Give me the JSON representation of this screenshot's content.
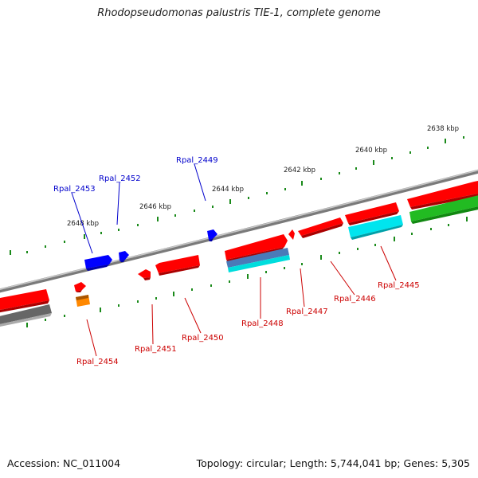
{
  "title": "Rhodopseudomonas palustris TIE-1, complete genome",
  "footer": {
    "accession": "Accession: NC_011004",
    "topology": "Topology: circular; Length: 5,744,041 bp; Genes: 5,305"
  },
  "colors": {
    "backbone": "#8a8a8a",
    "forward_gene": "#ff0000",
    "reverse_gene": "#0000ff",
    "cyan_feature": "#00e5ee",
    "green_feature": "#22bb22",
    "gray_feature": "#666666",
    "steelblue_feature": "#4a7ab8",
    "orange_feature": "#ff8800",
    "blue_label": "#0000cc",
    "red_label": "#cc0000"
  },
  "ruler_labels": [
    "2638 kbp",
    "2640 kbp",
    "2642 kbp",
    "2644 kbp",
    "2646 kbp",
    "2648 kbp"
  ],
  "genes_top": [
    {
      "name": "Rpal_2453",
      "color": "blue"
    },
    {
      "name": "Rpal_2452",
      "color": "blue"
    },
    {
      "name": "Rpal_2449",
      "color": "blue"
    }
  ],
  "genes_bottom": [
    {
      "name": "Rpal_2454",
      "color": "red"
    },
    {
      "name": "Rpal_2451",
      "color": "red"
    },
    {
      "name": "Rpal_2450",
      "color": "red"
    },
    {
      "name": "Rpal_2448",
      "color": "red"
    },
    {
      "name": "Rpal_2447",
      "color": "red"
    },
    {
      "name": "Rpal_2446",
      "color": "red"
    },
    {
      "name": "Rpal_2445",
      "color": "red"
    }
  ]
}
